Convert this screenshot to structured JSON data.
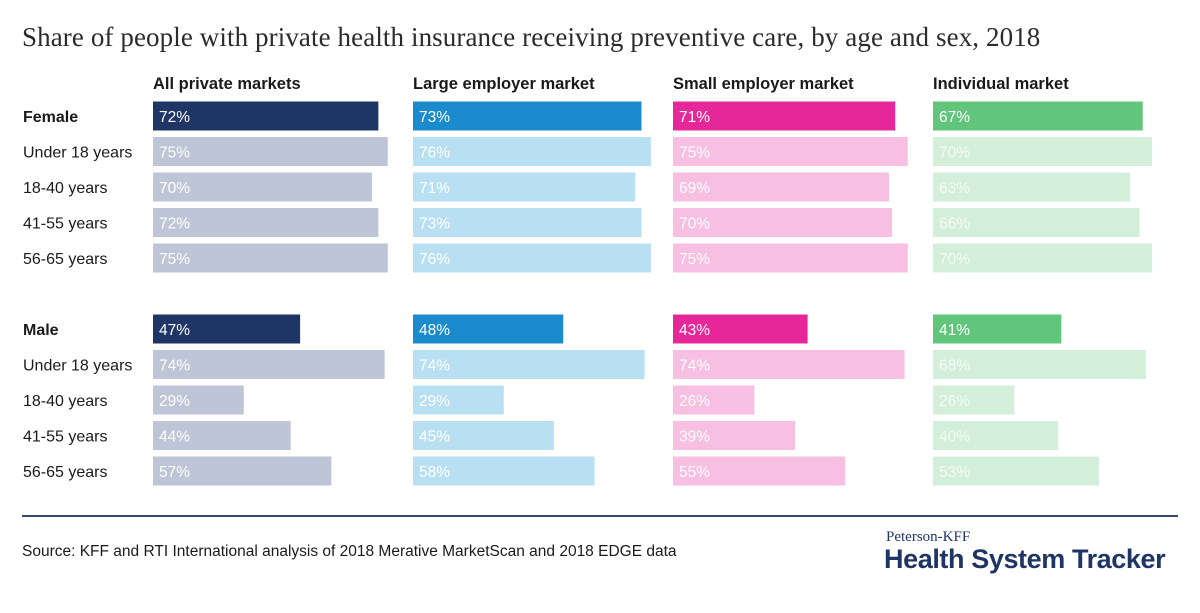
{
  "title": "Share of people with private health insurance receiving preventive care, by age and sex, 2018",
  "source": "Source: KFF and RTI International analysis of 2018 Merative MarketScan and 2018 EDGE data",
  "brand": {
    "top": "Peterson-KFF",
    "main": "Health System Tracker"
  },
  "chart_data": {
    "type": "bar",
    "orientation": "horizontal",
    "title": "Share of people with private health insurance receiving preventive care, by age and sex, 2018",
    "value_suffix": "%",
    "xlim": [
      0,
      100
    ],
    "panels": [
      {
        "name": "All private markets",
        "primary_color": "#1f3566",
        "light_color": "#bdc5d6",
        "light_text_color": "#ffffff"
      },
      {
        "name": "Large employer market",
        "primary_color": "#1a8bcc",
        "light_color": "#b9dff2",
        "light_text_color": "#ffffff"
      },
      {
        "name": "Small employer market",
        "primary_color": "#e6279a",
        "light_color": "#f7bfe2",
        "light_text_color": "#ffffff"
      },
      {
        "name": "Individual market",
        "primary_color": "#61c57c",
        "light_color": "#d3efd9",
        "light_text_color": "#f4fbf5"
      }
    ],
    "groups": [
      {
        "name": "Female",
        "total": [
          72,
          73,
          71,
          67
        ],
        "rows": [
          {
            "label": "Under 18 years",
            "values": [
              75,
              76,
              75,
              70
            ]
          },
          {
            "label": "18-40 years",
            "values": [
              70,
              71,
              69,
              63
            ]
          },
          {
            "label": "41-55 years",
            "values": [
              72,
              73,
              70,
              66
            ]
          },
          {
            "label": "56-65 years",
            "values": [
              75,
              76,
              75,
              70
            ]
          }
        ]
      },
      {
        "name": "Male",
        "total": [
          47,
          48,
          43,
          41
        ],
        "rows": [
          {
            "label": "Under 18 years",
            "values": [
              74,
              74,
              74,
              68
            ]
          },
          {
            "label": "18-40 years",
            "values": [
              29,
              29,
              26,
              26
            ]
          },
          {
            "label": "41-55 years",
            "values": [
              44,
              45,
              39,
              40
            ]
          },
          {
            "label": "56-65 years",
            "values": [
              57,
              58,
              55,
              53
            ]
          }
        ]
      }
    ]
  }
}
